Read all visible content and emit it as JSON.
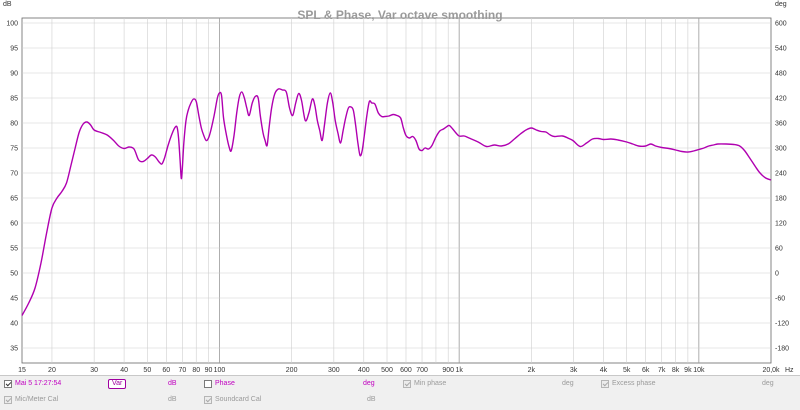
{
  "chart_data": {
    "type": "line",
    "title": "SPL & Phase, Var octave smoothing",
    "xscale": "log",
    "xlim": [
      15,
      20000
    ],
    "ylim": [
      32,
      101
    ],
    "y2lim": [
      -216,
      612
    ],
    "x_ticks": [
      {
        "value": 15,
        "label": "15"
      },
      {
        "value": 20,
        "label": "20"
      },
      {
        "value": 30,
        "label": "30"
      },
      {
        "value": 40,
        "label": "40"
      },
      {
        "value": 50,
        "label": "50"
      },
      {
        "value": 60,
        "label": "60"
      },
      {
        "value": 70,
        "label": "70"
      },
      {
        "value": 80,
        "label": "80"
      },
      {
        "value": 90,
        "label": "90"
      },
      {
        "value": 100,
        "label": "100"
      },
      {
        "value": 200,
        "label": "200"
      },
      {
        "value": 300,
        "label": "300"
      },
      {
        "value": 400,
        "label": "400"
      },
      {
        "value": 500,
        "label": "500"
      },
      {
        "value": 600,
        "label": "600"
      },
      {
        "value": 700,
        "label": "700"
      },
      {
        "value": 900,
        "label": "900"
      },
      {
        "value": 1000,
        "label": "1k"
      },
      {
        "value": 2000,
        "label": "2k"
      },
      {
        "value": 3000,
        "label": "3k"
      },
      {
        "value": 4000,
        "label": "4k"
      },
      {
        "value": 5000,
        "label": "5k"
      },
      {
        "value": 6000,
        "label": "6k"
      },
      {
        "value": 7000,
        "label": "7k"
      },
      {
        "value": 8000,
        "label": "8k"
      },
      {
        "value": 9000,
        "label": "9k"
      },
      {
        "value": 10000,
        "label": "10k"
      },
      {
        "value": 20000,
        "label": "20,0k"
      }
    ],
    "x_unit": "Hz",
    "y_ticks": [
      35,
      40,
      45,
      50,
      55,
      60,
      65,
      70,
      75,
      80,
      85,
      90,
      95,
      100
    ],
    "y_unit": "dB",
    "y2_ticks": [
      -180,
      -120,
      -60,
      0,
      60,
      120,
      180,
      240,
      300,
      360,
      420,
      480,
      540,
      600
    ],
    "y2_unit": "deg",
    "series": [
      {
        "name": "Var",
        "color": "#b000b0",
        "points": [
          [
            15,
            41.5
          ],
          [
            16,
            44
          ],
          [
            17,
            47
          ],
          [
            18,
            52
          ],
          [
            19,
            58
          ],
          [
            20,
            63
          ],
          [
            21,
            65
          ],
          [
            22,
            66.3
          ],
          [
            23,
            68
          ],
          [
            24,
            71.5
          ],
          [
            25,
            75
          ],
          [
            26,
            78.2
          ],
          [
            27,
            79.8
          ],
          [
            28,
            80.2
          ],
          [
            29,
            79.6
          ],
          [
            30,
            78.6
          ],
          [
            32,
            78.1
          ],
          [
            34,
            77.6
          ],
          [
            36,
            76.6
          ],
          [
            38,
            75.4
          ],
          [
            40,
            74.9
          ],
          [
            42,
            75.2
          ],
          [
            44,
            74.8
          ],
          [
            46,
            72.6
          ],
          [
            48,
            72.3
          ],
          [
            50,
            72.9
          ],
          [
            52,
            73.6
          ],
          [
            54,
            73.2
          ],
          [
            56,
            72.2
          ],
          [
            57.5,
            71.8
          ],
          [
            59,
            73
          ],
          [
            61,
            75.5
          ],
          [
            63,
            77.5
          ],
          [
            65,
            79
          ],
          [
            66.5,
            79.2
          ],
          [
            67.5,
            77
          ],
          [
            68.5,
            72.5
          ],
          [
            69.3,
            68.9
          ],
          [
            70,
            71
          ],
          [
            71,
            76
          ],
          [
            72.5,
            80.5
          ],
          [
            74,
            82.5
          ],
          [
            76,
            84
          ],
          [
            78,
            84.8
          ],
          [
            80,
            84.3
          ],
          [
            82,
            81.5
          ],
          [
            84,
            79
          ],
          [
            86,
            77.5
          ],
          [
            88,
            76.5
          ],
          [
            90,
            77
          ],
          [
            92,
            78.5
          ],
          [
            95,
            81.5
          ],
          [
            98,
            85
          ],
          [
            100,
            86
          ],
          [
            102,
            85.5
          ],
          [
            104,
            81
          ],
          [
            107,
            77.5
          ],
          [
            110,
            75
          ],
          [
            112,
            74.5
          ],
          [
            115,
            77.5
          ],
          [
            118,
            82
          ],
          [
            121,
            85.2
          ],
          [
            124,
            86.2
          ],
          [
            127,
            85
          ],
          [
            130,
            83
          ],
          [
            133,
            81.5
          ],
          [
            137,
            84
          ],
          [
            141,
            85.3
          ],
          [
            145,
            85
          ],
          [
            148,
            81.5
          ],
          [
            152,
            78
          ],
          [
            155,
            76.5
          ],
          [
            158,
            75.5
          ],
          [
            161,
            79
          ],
          [
            165,
            83
          ],
          [
            170,
            85.8
          ],
          [
            176,
            86.8
          ],
          [
            183,
            86.6
          ],
          [
            190,
            86.2
          ],
          [
            196,
            83
          ],
          [
            202,
            81.5
          ],
          [
            208,
            84
          ],
          [
            214,
            85.9
          ],
          [
            220,
            84.5
          ],
          [
            228,
            80.5
          ],
          [
            236,
            82
          ],
          [
            244,
            84.8
          ],
          [
            250,
            83.5
          ],
          [
            256,
            80.5
          ],
          [
            262,
            78.5
          ],
          [
            268,
            76.5
          ],
          [
            274,
            79.5
          ],
          [
            282,
            84
          ],
          [
            290,
            86
          ],
          [
            297,
            84
          ],
          [
            304,
            80.5
          ],
          [
            312,
            78
          ],
          [
            320,
            76
          ],
          [
            328,
            78.5
          ],
          [
            336,
            81
          ],
          [
            345,
            83
          ],
          [
            354,
            83.2
          ],
          [
            362,
            82.5
          ],
          [
            370,
            79.5
          ],
          [
            378,
            76
          ],
          [
            386,
            73.5
          ],
          [
            394,
            74.5
          ],
          [
            402,
            77.5
          ],
          [
            412,
            81.5
          ],
          [
            422,
            84.3
          ],
          [
            432,
            84
          ],
          [
            445,
            83.8
          ],
          [
            460,
            82
          ],
          [
            475,
            81.3
          ],
          [
            490,
            81.3
          ],
          [
            510,
            81.4
          ],
          [
            530,
            81.7
          ],
          [
            550,
            81.5
          ],
          [
            570,
            81
          ],
          [
            585,
            79
          ],
          [
            600,
            77.5
          ],
          [
            620,
            77
          ],
          [
            640,
            77.3
          ],
          [
            660,
            76.5
          ],
          [
            680,
            74.8
          ],
          [
            700,
            74.5
          ],
          [
            720,
            75
          ],
          [
            745,
            74.8
          ],
          [
            770,
            75.5
          ],
          [
            800,
            77.2
          ],
          [
            830,
            78.4
          ],
          [
            860,
            78.8
          ],
          [
            890,
            79.3
          ],
          [
            910,
            79.5
          ],
          [
            940,
            78.8
          ],
          [
            970,
            78
          ],
          [
            1000,
            77.4
          ],
          [
            1050,
            77.4
          ],
          [
            1100,
            77
          ],
          [
            1200,
            76.2
          ],
          [
            1300,
            75.3
          ],
          [
            1400,
            75.6
          ],
          [
            1500,
            75.4
          ],
          [
            1600,
            75.8
          ],
          [
            1700,
            76.8
          ],
          [
            1800,
            77.8
          ],
          [
            1900,
            78.6
          ],
          [
            2000,
            79
          ],
          [
            2100,
            78.6
          ],
          [
            2200,
            78.3
          ],
          [
            2300,
            78.2
          ],
          [
            2400,
            77.6
          ],
          [
            2500,
            77.3
          ],
          [
            2700,
            77.4
          ],
          [
            2900,
            76.8
          ],
          [
            3000,
            76.4
          ],
          [
            3200,
            75.3
          ],
          [
            3400,
            76
          ],
          [
            3600,
            76.8
          ],
          [
            3800,
            76.9
          ],
          [
            4000,
            76.7
          ],
          [
            4300,
            76.8
          ],
          [
            4600,
            76.6
          ],
          [
            5000,
            76.2
          ],
          [
            5300,
            75.8
          ],
          [
            5600,
            75.4
          ],
          [
            6000,
            75.4
          ],
          [
            6300,
            75.8
          ],
          [
            6600,
            75.4
          ],
          [
            7000,
            75.1
          ],
          [
            7500,
            74.9
          ],
          [
            8000,
            74.6
          ],
          [
            8500,
            74.3
          ],
          [
            9000,
            74.2
          ],
          [
            9500,
            74.4
          ],
          [
            10000,
            74.7
          ],
          [
            10500,
            75
          ],
          [
            11000,
            75.4
          ],
          [
            11500,
            75.6
          ],
          [
            12000,
            75.8
          ],
          [
            13000,
            75.8
          ],
          [
            14000,
            75.7
          ],
          [
            14800,
            75.4
          ],
          [
            15500,
            74.5
          ],
          [
            16300,
            73
          ],
          [
            17200,
            71.3
          ],
          [
            18000,
            70
          ],
          [
            19000,
            69
          ],
          [
            20000,
            68.6
          ]
        ]
      }
    ]
  },
  "legend": {
    "row1": [
      {
        "label": "Mai 5 17:27:54",
        "checked": true,
        "enabled": true,
        "color": "#c000c0"
      },
      {
        "label": "Phase",
        "checked": false,
        "enabled": true,
        "color": "#c000c0"
      },
      {
        "label": "Min phase",
        "checked": true,
        "enabled": false,
        "color": "#9a9a9a"
      },
      {
        "label": "Excess phase",
        "checked": true,
        "enabled": false,
        "color": "#9a9a9a"
      }
    ],
    "row2": [
      {
        "label": "Mic/Meter Cal",
        "checked": true,
        "enabled": false
      },
      {
        "label": "Soundcard Cal",
        "checked": true,
        "enabled": false
      }
    ],
    "var_label": "Var",
    "units": {
      "db1": "dB",
      "deg_phase": "deg",
      "deg_min": "deg",
      "deg_excess": "deg",
      "db2": "dB",
      "db3": "dB"
    }
  }
}
